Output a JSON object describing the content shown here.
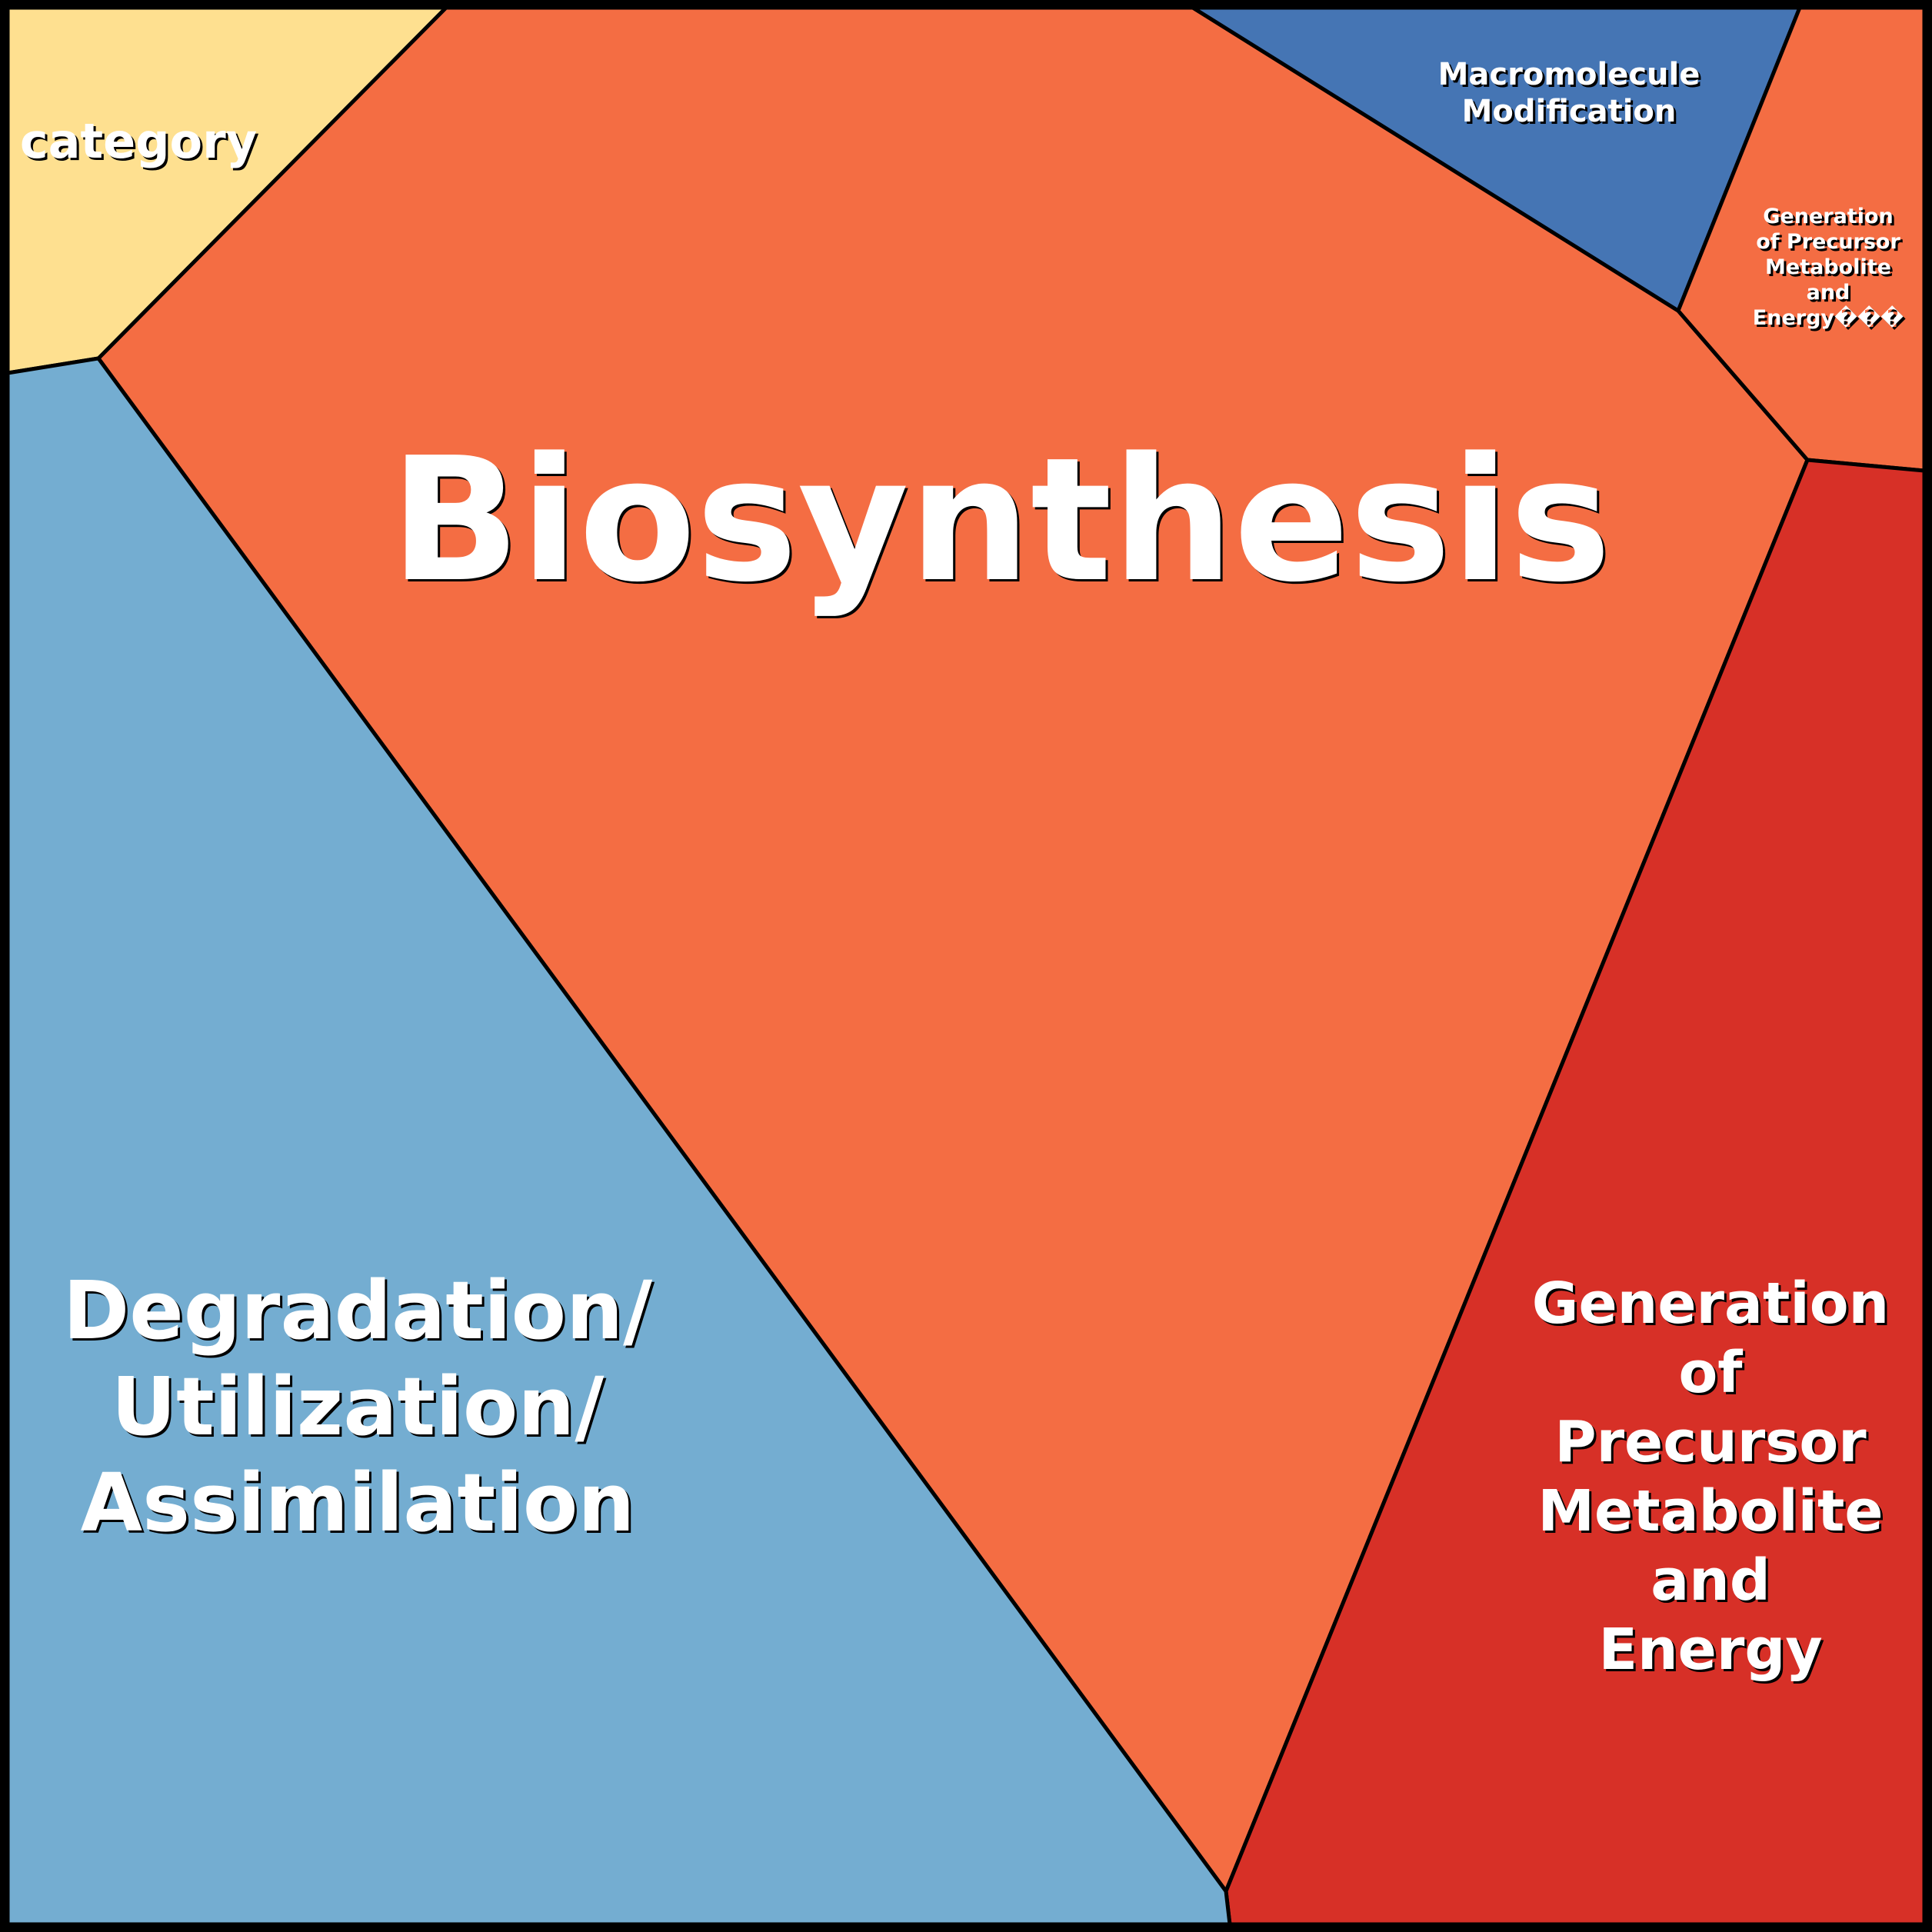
{
  "diagram": {
    "type": "voronoi-treemap",
    "cells": [
      {
        "id": "category",
        "label_lines": [
          "category"
        ],
        "color": "#FEE090"
      },
      {
        "id": "biosynthesis",
        "label_lines": [
          "Biosynthesis"
        ],
        "color": "#F46D43"
      },
      {
        "id": "macromolecule",
        "label_lines": [
          "Macromolecule",
          "Modification"
        ],
        "color": "#4575B4"
      },
      {
        "id": "generation-small",
        "label_lines": [
          "Generation",
          "of Precursor",
          "Metabolite",
          "and",
          "Energy���"
        ],
        "color": "#F46D43"
      },
      {
        "id": "generation",
        "label_lines": [
          "Generation",
          "of",
          "Precursor",
          "Metabolite",
          "and",
          "Energy"
        ],
        "color": "#D73027"
      },
      {
        "id": "degradation",
        "label_lines": [
          "Degradation/",
          "Utilization/",
          "Assimilation"
        ],
        "color": "#74ADD1"
      }
    ],
    "border_color": "#000000",
    "text_color": "#FFFFFF"
  }
}
